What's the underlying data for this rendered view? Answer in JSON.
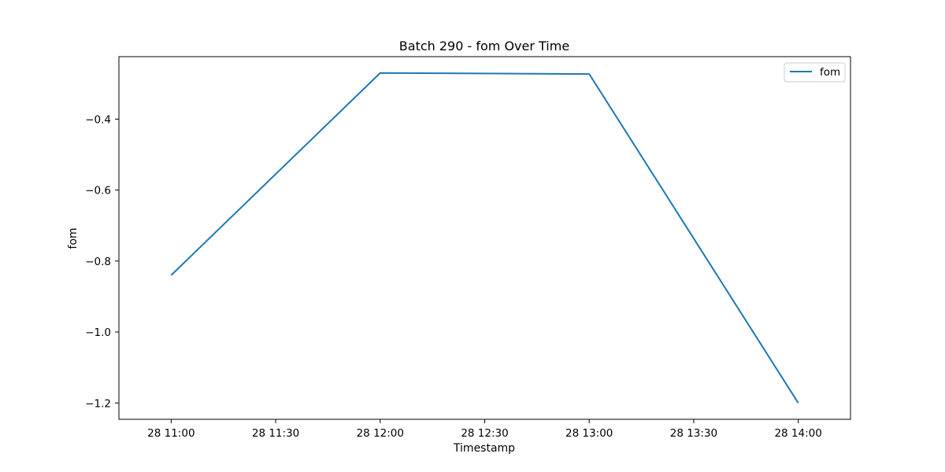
{
  "chart_data": {
    "type": "line",
    "title": "Batch 290 - fom Over Time",
    "xlabel": "Timestamp",
    "ylabel": "fom",
    "x": [
      "28 11:00",
      "28 12:00",
      "28 13:00",
      "28 14:00"
    ],
    "series": [
      {
        "name": "fom",
        "color": "#1f77b4",
        "values": [
          -0.84,
          -0.27,
          -0.273,
          -1.2
        ]
      }
    ],
    "xticks": [
      "28 11:00",
      "28 11:30",
      "28 12:00",
      "28 12:30",
      "28 13:00",
      "28 13:30",
      "28 14:00"
    ],
    "yticks": [
      -1.2,
      -1.0,
      -0.8,
      -0.6,
      -0.4
    ],
    "ytick_labels": [
      "−1.2",
      "−1.0",
      "−0.8",
      "−0.6",
      "−0.4"
    ],
    "xlim": [
      "28 10:45",
      "28 14:15"
    ],
    "ylim": [
      -1.246,
      -0.224
    ],
    "grid": false,
    "legend_position": "top-right"
  }
}
